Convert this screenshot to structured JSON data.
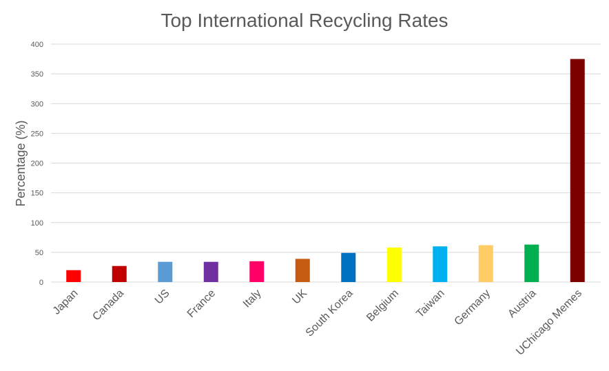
{
  "chart_data": {
    "type": "bar",
    "title": "Top International Recycling Rates",
    "xlabel": "",
    "ylabel": "Percentage (%)",
    "ylim": [
      0,
      400
    ],
    "yticks": [
      0,
      50,
      100,
      150,
      200,
      250,
      300,
      350,
      400
    ],
    "grid": true,
    "categories": [
      "Japan",
      "Canada",
      "US",
      "France",
      "Italy",
      "UK",
      "South Korea",
      "Belgium",
      "Taiwan",
      "Germany",
      "Austria",
      "UChicago Memes"
    ],
    "values": [
      20,
      27,
      34,
      34,
      35,
      39,
      49,
      58,
      60,
      62,
      63,
      375
    ],
    "colors": [
      "#ff0000",
      "#c00000",
      "#5b9bd5",
      "#7030a0",
      "#ff0066",
      "#c55a11",
      "#0070c0",
      "#ffff00",
      "#00b0f0",
      "#ffcc66",
      "#00b050",
      "#7b0000"
    ]
  }
}
